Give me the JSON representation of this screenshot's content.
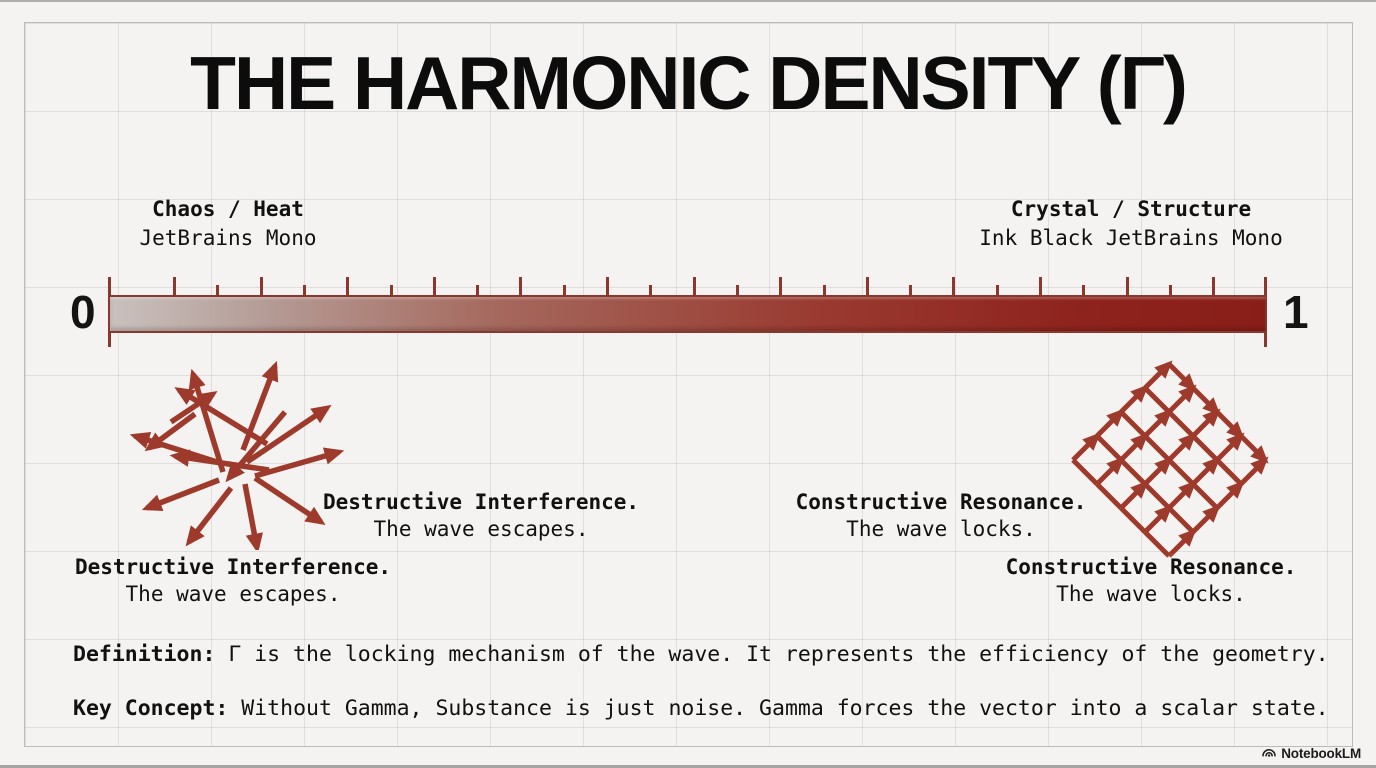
{
  "title": "THE HARMONIC DENSITY (Γ)",
  "scale": {
    "left_label": "Chaos / Heat",
    "left_sublabel": "JetBrains Mono",
    "right_label": "Crystal / Structure",
    "right_sublabel": "Ink Black JetBrains Mono",
    "min": "0",
    "max": "1",
    "tick_count": 25,
    "gradient_start": "#c9c1bf",
    "gradient_end": "#891e18"
  },
  "captions": {
    "destructive_title": "Destructive Interference.",
    "destructive_sub": "The wave escapes.",
    "constructive_title": "Constructive Resonance.",
    "constructive_sub": "The wave locks."
  },
  "definition": {
    "label": "Definition:",
    "text": " Γ is the locking mechanism of the wave. It represents the efficiency of the geometry."
  },
  "key_concept": {
    "label": "Key Concept:",
    "text": " Without Gamma, Substance is just noise. Gamma forces the vector into a scalar state."
  },
  "branding": {
    "logo_text": "NotebookLM"
  },
  "colors": {
    "accent_arrow": "#9e3a2b",
    "tick": "#8a372e",
    "ink": "#111111",
    "background": "#f4f3f1"
  }
}
